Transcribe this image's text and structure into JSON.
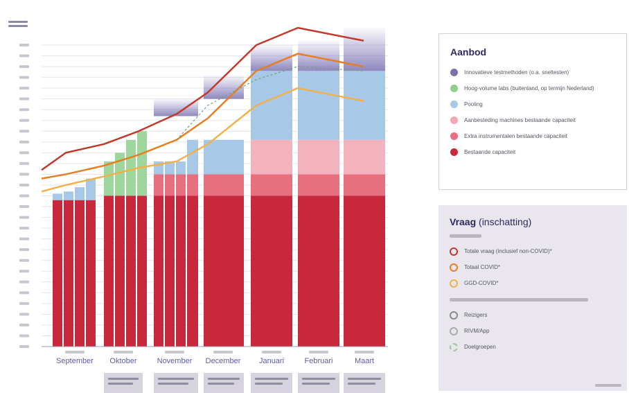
{
  "chart_data": {
    "type": "area",
    "title": "",
    "xlabel": "",
    "ylabel": "",
    "ylim": [
      0,
      700
    ],
    "grid": true,
    "legend_placement": "right",
    "months": [
      {
        "label": "September",
        "weeks": 4
      },
      {
        "label": "Oktober",
        "weeks": 4
      },
      {
        "label": "November",
        "weeks": 4
      },
      {
        "label": "December",
        "weeks": 1
      },
      {
        "label": "Januari",
        "weeks": 1
      },
      {
        "label": "Februari",
        "weeks": 1
      },
      {
        "label": "Maart",
        "weeks": 1
      }
    ],
    "supply_series": [
      {
        "name": "Bestaande capaciteit",
        "color": "#c8283c",
        "values": [
          340,
          340,
          340,
          340,
          350,
          350,
          350,
          350,
          350,
          350,
          350,
          350,
          350,
          350,
          350,
          350
        ]
      },
      {
        "name": "Extra instrumentalen bestaande capaciteit",
        "color": "#e7707e",
        "values": [
          0,
          0,
          0,
          0,
          0,
          0,
          0,
          0,
          50,
          50,
          50,
          50,
          50,
          50,
          50,
          50
        ]
      },
      {
        "name": "Aanbesteding machines bestaande capaciteit",
        "color": "#f2b3bf",
        "values": [
          0,
          0,
          0,
          0,
          0,
          0,
          0,
          0,
          0,
          0,
          0,
          0,
          0,
          80,
          80,
          80
        ]
      },
      {
        "name": "Pooling",
        "color": "#a8c8e8",
        "values": [
          15,
          20,
          30,
          50,
          0,
          0,
          0,
          0,
          30,
          30,
          30,
          80,
          80,
          160,
          160,
          160
        ]
      },
      {
        "name": "Hoog-volume labs (buitenland, op termijn Nederland)",
        "color": "#9fd69e",
        "values": [
          0,
          0,
          0,
          0,
          80,
          100,
          130,
          150,
          0,
          0,
          0,
          0,
          0,
          0,
          0,
          0
        ]
      },
      {
        "name": "Innovatieve testmethoden (o.a. sneltesten)",
        "color": "#9d97c8",
        "values": [
          0,
          0,
          0,
          0,
          0,
          0,
          0,
          0,
          0,
          0,
          0,
          0,
          0,
          0,
          0,
          0
        ]
      }
    ],
    "demand_series": [
      {
        "name": "Totale vraag (inclusief non-COVID)*",
        "color": "#c0392b",
        "values": [
          410,
          450,
          470,
          500,
          540,
          590,
          700,
          740,
          710
        ]
      },
      {
        "name": "Totaal COVID*",
        "color": "#e67e22",
        "values": [
          390,
          400,
          420,
          445,
          480,
          530,
          640,
          680,
          650
        ]
      },
      {
        "name": "GGD-COVID*",
        "color": "#f0b14a",
        "values": [
          360,
          375,
          395,
          415,
          430,
          470,
          560,
          600,
          570
        ]
      }
    ]
  },
  "legend": {
    "aanbod_title": "Aanbod",
    "aanbod_items": [
      {
        "label": "Innovatieve testmethoden (o.a. sneltesten)",
        "color": "#7b72a8"
      },
      {
        "label": "Hoog-volume labs (buitenland, op termijn Nederland)",
        "color": "#8fcf8e"
      },
      {
        "label": "Pooling",
        "color": "#a8c8e8"
      },
      {
        "label": "Aanbesteding machines bestaande capaciteit",
        "color": "#f2a8b6"
      },
      {
        "label": "Extra instrumentalen bestaande capaciteit",
        "color": "#e7707e"
      },
      {
        "label": "Bestaande capaciteit",
        "color": "#c8283c"
      }
    ],
    "vraag_title": "Vraag",
    "vraag_subtitle": "(inschatting)",
    "vraag_items": [
      {
        "label": "Totale vraag (inclusief non-COVID)*",
        "color": "#c0392b"
      },
      {
        "label": "Totaal COVID*",
        "color": "#e67e22"
      },
      {
        "label": "GGD-COVID*",
        "color": "#f0b14a"
      }
    ],
    "teller_items": [
      {
        "label": "Reizigers",
        "color": "#8a8a8a"
      },
      {
        "label": "RIVM/App",
        "color": "#aaaaaa"
      },
      {
        "label": "Doelgroepen",
        "color": "#9bc79b"
      }
    ]
  }
}
